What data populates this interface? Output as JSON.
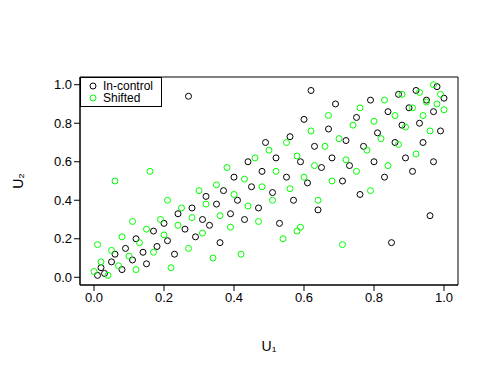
{
  "chart_data": {
    "type": "scatter",
    "xlabel": "U₁",
    "ylabel": "U₂",
    "legend": "top-left",
    "grid": false,
    "xlim": [
      -0.04,
      1.04
    ],
    "ylim": [
      -0.04,
      1.04
    ],
    "xticks": [
      {
        "value": 0,
        "label": "0.0"
      },
      {
        "value": 0.2,
        "label": "0.2"
      },
      {
        "value": 0.4,
        "label": "0.4"
      },
      {
        "value": 0.6,
        "label": "0.6"
      },
      {
        "value": 0.8,
        "label": "0.8"
      },
      {
        "value": 1,
        "label": "1.0"
      }
    ],
    "yticks": [
      {
        "value": 0,
        "label": "0.0"
      },
      {
        "value": 0.2,
        "label": "0.2"
      },
      {
        "value": 0.4,
        "label": "0.4"
      },
      {
        "value": 0.6,
        "label": "0.6"
      },
      {
        "value": 0.8,
        "label": "0.8"
      },
      {
        "value": 1,
        "label": "1.0"
      }
    ],
    "series": [
      {
        "name": "In-control",
        "color": "#000000",
        "marker": "circle_open",
        "x": [
          0.01,
          0.02,
          0.03,
          0.05,
          0.06,
          0.08,
          0.09,
          0.11,
          0.12,
          0.14,
          0.15,
          0.17,
          0.18,
          0.2,
          0.21,
          0.23,
          0.24,
          0.26,
          0.27,
          0.28,
          0.29,
          0.31,
          0.32,
          0.33,
          0.35,
          0.36,
          0.37,
          0.39,
          0.4,
          0.41,
          0.43,
          0.44,
          0.45,
          0.47,
          0.48,
          0.49,
          0.51,
          0.52,
          0.53,
          0.55,
          0.56,
          0.57,
          0.59,
          0.6,
          0.61,
          0.63,
          0.64,
          0.65,
          0.67,
          0.68,
          0.69,
          0.71,
          0.72,
          0.73,
          0.75,
          0.76,
          0.77,
          0.79,
          0.8,
          0.81,
          0.83,
          0.84,
          0.85,
          0.86,
          0.87,
          0.88,
          0.89,
          0.9,
          0.91,
          0.92,
          0.93,
          0.94,
          0.95,
          0.96,
          0.97,
          0.98,
          0.99,
          1.0,
          0.97,
          0.62
        ],
        "y": [
          0.01,
          0.05,
          0.02,
          0.08,
          0.12,
          0.04,
          0.15,
          0.09,
          0.2,
          0.13,
          0.07,
          0.24,
          0.16,
          0.28,
          0.19,
          0.12,
          0.33,
          0.25,
          0.94,
          0.36,
          0.21,
          0.3,
          0.42,
          0.27,
          0.38,
          0.18,
          0.45,
          0.33,
          0.52,
          0.4,
          0.3,
          0.6,
          0.47,
          0.36,
          0.55,
          0.7,
          0.44,
          0.62,
          0.28,
          0.52,
          0.73,
          0.4,
          0.6,
          0.82,
          0.49,
          0.68,
          0.35,
          0.57,
          0.77,
          0.62,
          0.9,
          0.5,
          0.71,
          0.58,
          0.83,
          0.43,
          0.68,
          0.92,
          0.6,
          0.75,
          0.52,
          0.86,
          0.18,
          0.7,
          0.95,
          0.79,
          0.62,
          0.88,
          0.55,
          0.97,
          0.8,
          0.7,
          0.92,
          0.32,
          0.86,
          0.99,
          0.76,
          0.93,
          0.6,
          0.97
        ]
      },
      {
        "name": "Shifted",
        "color": "#00ff00",
        "marker": "circle_open",
        "x": [
          0.0,
          0.01,
          0.02,
          0.04,
          0.05,
          0.06,
          0.07,
          0.08,
          0.1,
          0.11,
          0.12,
          0.13,
          0.15,
          0.16,
          0.17,
          0.19,
          0.2,
          0.21,
          0.22,
          0.24,
          0.25,
          0.27,
          0.28,
          0.3,
          0.31,
          0.32,
          0.34,
          0.35,
          0.36,
          0.38,
          0.39,
          0.4,
          0.42,
          0.43,
          0.44,
          0.46,
          0.47,
          0.48,
          0.5,
          0.51,
          0.52,
          0.54,
          0.55,
          0.56,
          0.58,
          0.59,
          0.6,
          0.62,
          0.63,
          0.64,
          0.66,
          0.67,
          0.68,
          0.7,
          0.71,
          0.72,
          0.74,
          0.75,
          0.76,
          0.78,
          0.79,
          0.8,
          0.82,
          0.83,
          0.84,
          0.86,
          0.87,
          0.88,
          0.89,
          0.91,
          0.92,
          0.93,
          0.94,
          0.95,
          0.96,
          0.97,
          0.98,
          0.99,
          1.0,
          0.58
        ],
        "y": [
          0.03,
          0.17,
          0.08,
          0.01,
          0.14,
          0.5,
          0.06,
          0.21,
          0.11,
          0.29,
          0.04,
          0.18,
          0.25,
          0.55,
          0.13,
          0.3,
          0.22,
          0.4,
          0.05,
          0.27,
          0.36,
          0.15,
          0.31,
          0.45,
          0.23,
          0.38,
          0.1,
          0.48,
          0.32,
          0.57,
          0.26,
          0.43,
          0.12,
          0.51,
          0.37,
          0.62,
          0.29,
          0.47,
          0.66,
          0.4,
          0.55,
          0.2,
          0.7,
          0.46,
          0.63,
          0.26,
          0.52,
          0.76,
          0.58,
          0.4,
          0.68,
          0.84,
          0.5,
          0.72,
          0.17,
          0.61,
          0.79,
          0.55,
          0.88,
          0.66,
          0.45,
          0.81,
          0.72,
          0.92,
          0.58,
          0.84,
          0.69,
          0.95,
          0.78,
          0.88,
          0.64,
          0.96,
          0.84,
          0.91,
          0.76,
          1.0,
          0.9,
          0.95,
          0.87,
          0.24
        ]
      }
    ]
  }
}
